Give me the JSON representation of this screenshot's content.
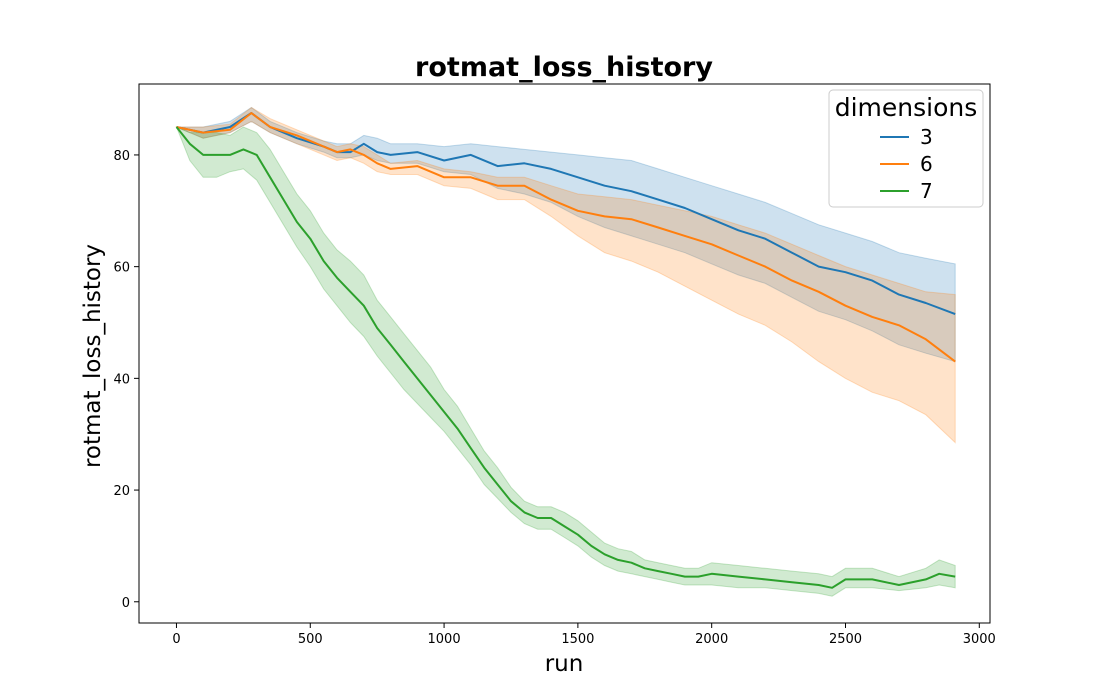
{
  "chart_data": {
    "type": "line",
    "title": "rotmat_loss_history",
    "xlabel": "run",
    "ylabel": "rotmat_loss_history",
    "xlim": [
      -140,
      3040
    ],
    "ylim": [
      -3.8,
      92.7
    ],
    "xticks": [
      0,
      500,
      1000,
      1500,
      2000,
      2500,
      3000
    ],
    "yticks": [
      0,
      20,
      40,
      60,
      80
    ],
    "grid": false,
    "legend": {
      "title": "dimensions",
      "placement": "top-right"
    },
    "series": [
      {
        "name": "3",
        "color": "#1f77b4",
        "x": [
          0,
          100,
          200,
          280,
          350,
          450,
          550,
          600,
          650,
          700,
          750,
          800,
          900,
          1000,
          1100,
          1200,
          1300,
          1400,
          1500,
          1600,
          1700,
          1800,
          1900,
          2000,
          2100,
          2200,
          2300,
          2400,
          2500,
          2600,
          2700,
          2800,
          2910
        ],
        "y": [
          85,
          84,
          85,
          87.5,
          85,
          83,
          81.5,
          80.5,
          80.5,
          82,
          80.5,
          80,
          80.5,
          79,
          80,
          78,
          78.5,
          77.5,
          76,
          74.5,
          73.5,
          72,
          70.5,
          68.5,
          66.5,
          65,
          62.5,
          60,
          59,
          57.5,
          55,
          53.5,
          51.5
        ],
        "lower": [
          85,
          83,
          84,
          86,
          84,
          82,
          80.5,
          79.5,
          79.5,
          80,
          79,
          78.5,
          78.5,
          77,
          76.5,
          74,
          73,
          71.5,
          69,
          67,
          65.5,
          64,
          62.5,
          60.5,
          58.5,
          57,
          54.5,
          52,
          50.5,
          48.5,
          46,
          44.5,
          43
        ],
        "upper": [
          85,
          85,
          86,
          88.5,
          86,
          84,
          82.5,
          82,
          82,
          83.5,
          83,
          82,
          82,
          81.5,
          82,
          81.5,
          81,
          80.5,
          80,
          79.5,
          79,
          77.5,
          76,
          74.5,
          73,
          71.5,
          69.5,
          67.5,
          66,
          64.5,
          62.5,
          61.5,
          60.5
        ]
      },
      {
        "name": "6",
        "color": "#ff7f0e",
        "x": [
          0,
          100,
          200,
          280,
          350,
          450,
          550,
          600,
          650,
          700,
          750,
          800,
          900,
          1000,
          1100,
          1200,
          1300,
          1400,
          1500,
          1600,
          1700,
          1800,
          1900,
          2000,
          2100,
          2200,
          2300,
          2400,
          2500,
          2600,
          2700,
          2800,
          2910
        ],
        "y": [
          85,
          84,
          84.5,
          87.5,
          85,
          83.5,
          81.5,
          80.5,
          81,
          80,
          78.5,
          77.5,
          78,
          76,
          76,
          74.5,
          74.5,
          72,
          70,
          69,
          68.5,
          67,
          65.5,
          64,
          62,
          60,
          57.5,
          55.5,
          53,
          51,
          49.5,
          47,
          43
        ],
        "lower": [
          85,
          83,
          84,
          86,
          84,
          82,
          80,
          79,
          79.5,
          78.5,
          77,
          76.5,
          76.5,
          74.5,
          74,
          72,
          72,
          69,
          65.5,
          62.5,
          61,
          59,
          56.5,
          54,
          51.5,
          49.5,
          46.5,
          43,
          40,
          37.5,
          36,
          33.5,
          28.5
        ],
        "upper": [
          85,
          85,
          85.5,
          88.5,
          86.5,
          84.5,
          82.5,
          81.5,
          82,
          81.5,
          80,
          78.5,
          79,
          77.5,
          77,
          76,
          76,
          74.5,
          73,
          72.5,
          72,
          71,
          70,
          69,
          67.5,
          66,
          64,
          62,
          60,
          58.5,
          57,
          55.5,
          55
        ]
      },
      {
        "name": "7",
        "color": "#2ca02c",
        "x": [
          0,
          50,
          100,
          150,
          200,
          250,
          300,
          350,
          400,
          450,
          500,
          550,
          600,
          650,
          700,
          750,
          800,
          850,
          900,
          950,
          1000,
          1050,
          1100,
          1150,
          1200,
          1250,
          1300,
          1350,
          1400,
          1450,
          1500,
          1550,
          1600,
          1650,
          1700,
          1750,
          1800,
          1850,
          1900,
          1950,
          2000,
          2100,
          2200,
          2300,
          2400,
          2450,
          2500,
          2600,
          2700,
          2800,
          2850,
          2910
        ],
        "y": [
          85,
          82,
          80,
          80,
          80,
          81,
          80,
          76,
          72,
          68,
          65,
          61,
          58,
          55.5,
          53,
          49,
          46,
          43,
          40,
          37,
          34,
          31,
          27.5,
          24,
          21,
          18,
          16,
          15,
          15,
          13.5,
          12,
          10,
          8.5,
          7.5,
          7,
          6,
          5.5,
          5,
          4.5,
          4.5,
          5,
          4.5,
          4,
          3.5,
          3,
          2.5,
          4,
          4,
          3,
          4,
          5,
          4.5
        ],
        "lower": [
          85,
          79,
          76,
          76,
          77,
          77.5,
          75.5,
          71.5,
          67.5,
          63.5,
          60,
          56,
          53,
          50,
          47.5,
          44,
          41,
          38,
          35.5,
          33,
          30.5,
          27.5,
          24.5,
          21,
          18.5,
          16,
          14,
          13,
          13,
          11.5,
          10,
          8,
          6.5,
          5.5,
          5,
          4.5,
          4,
          3.5,
          3,
          3,
          3,
          2.5,
          2.5,
          2,
          1.5,
          1,
          2.5,
          2.5,
          2,
          2.5,
          3,
          2.5
        ],
        "upper": [
          85,
          84,
          84,
          84,
          83.5,
          85,
          84,
          81,
          77,
          73,
          70,
          66,
          63,
          61,
          58.5,
          54,
          51,
          48,
          45,
          42,
          38,
          35,
          31,
          27,
          24,
          20.5,
          18,
          17,
          17,
          16,
          14.5,
          12.5,
          10.5,
          9.5,
          9,
          7.5,
          7,
          6.5,
          6,
          6,
          7,
          6.5,
          6,
          5.5,
          5,
          4.5,
          6,
          6,
          4.5,
          6,
          7.5,
          6.5
        ]
      }
    ]
  }
}
